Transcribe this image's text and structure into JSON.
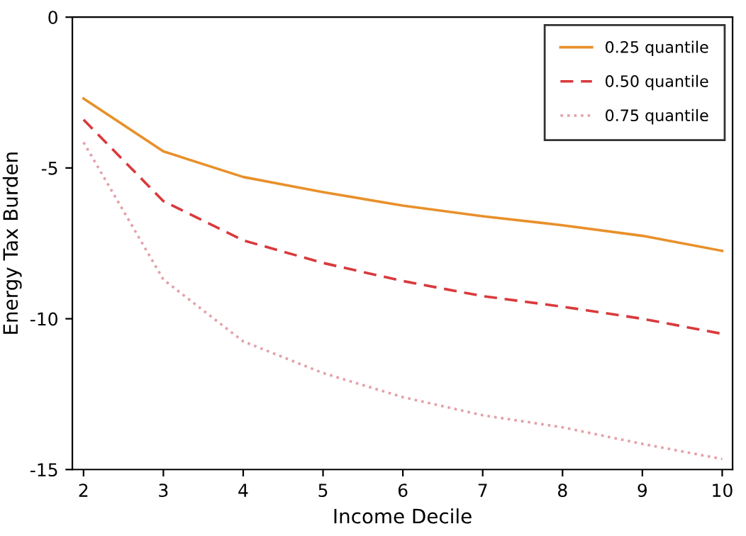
{
  "chart_data": {
    "type": "line",
    "xlabel": "Income Decile",
    "ylabel": "Energy Tax Burden",
    "x": [
      2,
      3,
      4,
      5,
      6,
      7,
      8,
      9,
      10
    ],
    "xlim": [
      1.86,
      10.13
    ],
    "xticks": [
      2,
      3,
      4,
      5,
      6,
      7,
      8,
      9,
      10
    ],
    "ylim": [
      -15,
      0
    ],
    "yticks": [
      -15,
      -10,
      -5,
      0
    ],
    "grid": false,
    "legend": "top right",
    "series": [
      {
        "name": "0.25 quantile",
        "color": "#e8902a",
        "line_style": "solid",
        "values": [
          -2.7,
          -4.45,
          -5.3,
          -5.8,
          -6.25,
          -6.6,
          -6.9,
          -7.25,
          -7.75
        ]
      },
      {
        "name": "0.50 quantile",
        "color": "#d9393c",
        "line_style": "dashed",
        "values": [
          -3.4,
          -6.1,
          -7.4,
          -8.15,
          -8.75,
          -9.25,
          -9.6,
          -10.0,
          -10.5
        ]
      },
      {
        "name": "0.75 quantile",
        "color": "#e3a0a8",
        "line_style": "dotted",
        "values": [
          -4.15,
          -8.7,
          -10.75,
          -11.8,
          -12.6,
          -13.2,
          -13.6,
          -14.15,
          -14.65
        ]
      }
    ]
  }
}
